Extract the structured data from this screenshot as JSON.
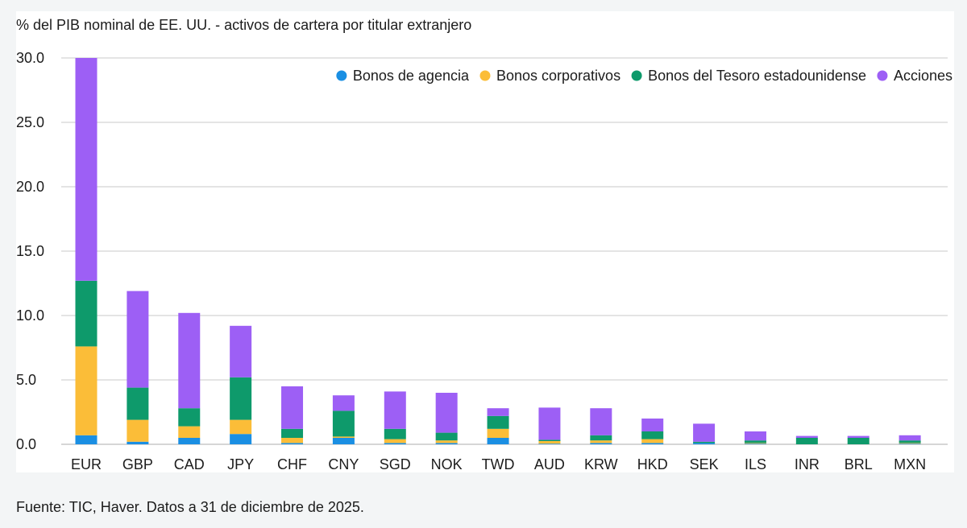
{
  "title": "% del PIB nominal de EE. UU. - activos de cartera por titular extranjero",
  "footer": "Fuente: TIC, Haver. Datos a 31 de diciembre de 2025.",
  "chart_data": {
    "type": "bar",
    "stacked": true,
    "categories": [
      "EUR",
      "GBP",
      "CAD",
      "JPY",
      "CHF",
      "CNY",
      "SGD",
      "NOK",
      "TWD",
      "AUD",
      "KRW",
      "HKD",
      "SEK",
      "ILS",
      "INR",
      "BRL",
      "MXN"
    ],
    "series": [
      {
        "name": "Bonos de agencia",
        "color": "#1a8fe3",
        "values": [
          0.7,
          0.2,
          0.5,
          0.8,
          0.1,
          0.5,
          0.1,
          0.1,
          0.5,
          0.05,
          0.1,
          0.1,
          0.1,
          0.05,
          0.0,
          0.0,
          0.05
        ]
      },
      {
        "name": "Bonos corporativos",
        "color": "#fbbd38",
        "values": [
          6.9,
          1.7,
          0.9,
          1.1,
          0.4,
          0.1,
          0.3,
          0.2,
          0.7,
          0.2,
          0.2,
          0.3,
          0.0,
          0.05,
          0.0,
          0.0,
          0.05
        ]
      },
      {
        "name": "Bonos del Tesoro estadounidense",
        "color": "#0e9a6b",
        "values": [
          5.1,
          2.5,
          1.4,
          3.3,
          0.7,
          2.0,
          0.8,
          0.6,
          1.0,
          0.1,
          0.4,
          0.6,
          0.1,
          0.2,
          0.5,
          0.5,
          0.2
        ]
      },
      {
        "name": "Acciones",
        "color": "#9d5ff5",
        "values": [
          17.3,
          7.5,
          7.4,
          4.0,
          3.3,
          1.2,
          2.9,
          3.1,
          0.6,
          2.5,
          2.1,
          1.0,
          1.4,
          0.7,
          0.15,
          0.15,
          0.4
        ]
      }
    ],
    "ylim": [
      0,
      30
    ],
    "yticks": [
      "0.0",
      "5.0",
      "10.0",
      "15.0",
      "20.0",
      "25.0",
      "30.0"
    ],
    "grid": true,
    "legend_position": "top-right"
  }
}
